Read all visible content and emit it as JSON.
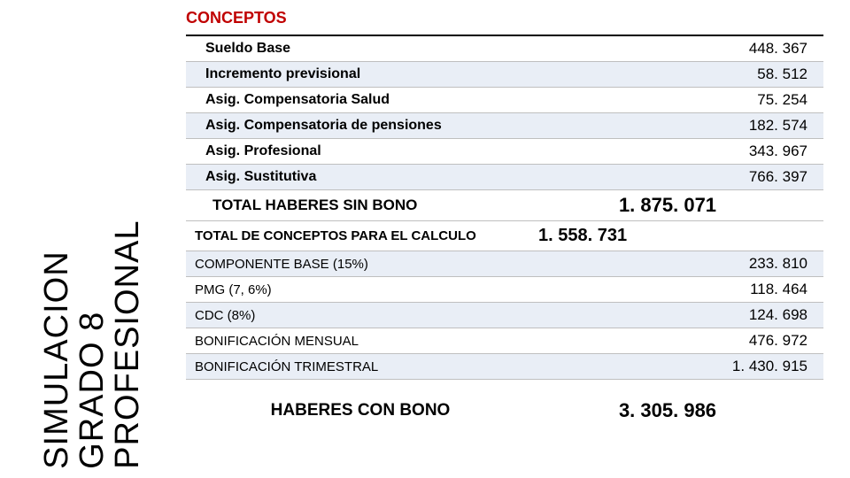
{
  "sidebar": {
    "line1": "SIMULACION",
    "line2": "GRADO 8",
    "line3": "PROFESIONAL"
  },
  "header": {
    "title": "CONCEPTOS"
  },
  "rows": {
    "sueldo": {
      "label": "Sueldo Base",
      "value": "448. 367"
    },
    "incremento": {
      "label": "Incremento previsional",
      "value": "58. 512"
    },
    "salud": {
      "label": "Asig. Compensatoria Salud",
      "value": "75. 254"
    },
    "pensiones": {
      "label": "Asig. Compensatoria de pensiones",
      "value": "182. 574"
    },
    "profesional": {
      "label": "Asig. Profesional",
      "value": "343. 967"
    },
    "sustitutiva": {
      "label": "Asig. Sustitutiva",
      "value": "766. 397"
    },
    "total_sin_bono": {
      "label": "TOTAL HABERES SIN BONO",
      "value": "1. 875. 071"
    },
    "total_conceptos": {
      "label": "TOTAL DE CONCEPTOS PARA EL CALCULO",
      "value": "1. 558. 731"
    },
    "componente": {
      "label": "COMPONENTE BASE (15%)",
      "value": "233. 810"
    },
    "pmg": {
      "label": "PMG (7, 6%)",
      "value": "118. 464"
    },
    "cdc": {
      "label": "CDC (8%)",
      "value": "124. 698"
    },
    "bon_mensual": {
      "label": "BONIFICACIÓN MENSUAL",
      "value": "476. 972"
    },
    "bon_trimestral": {
      "label": "BONIFICACIÓN TRIMESTRAL",
      "value": "1. 430. 915"
    },
    "haberes_con_bono": {
      "label": "HABERES CON BONO",
      "value": "3. 305. 986"
    }
  }
}
